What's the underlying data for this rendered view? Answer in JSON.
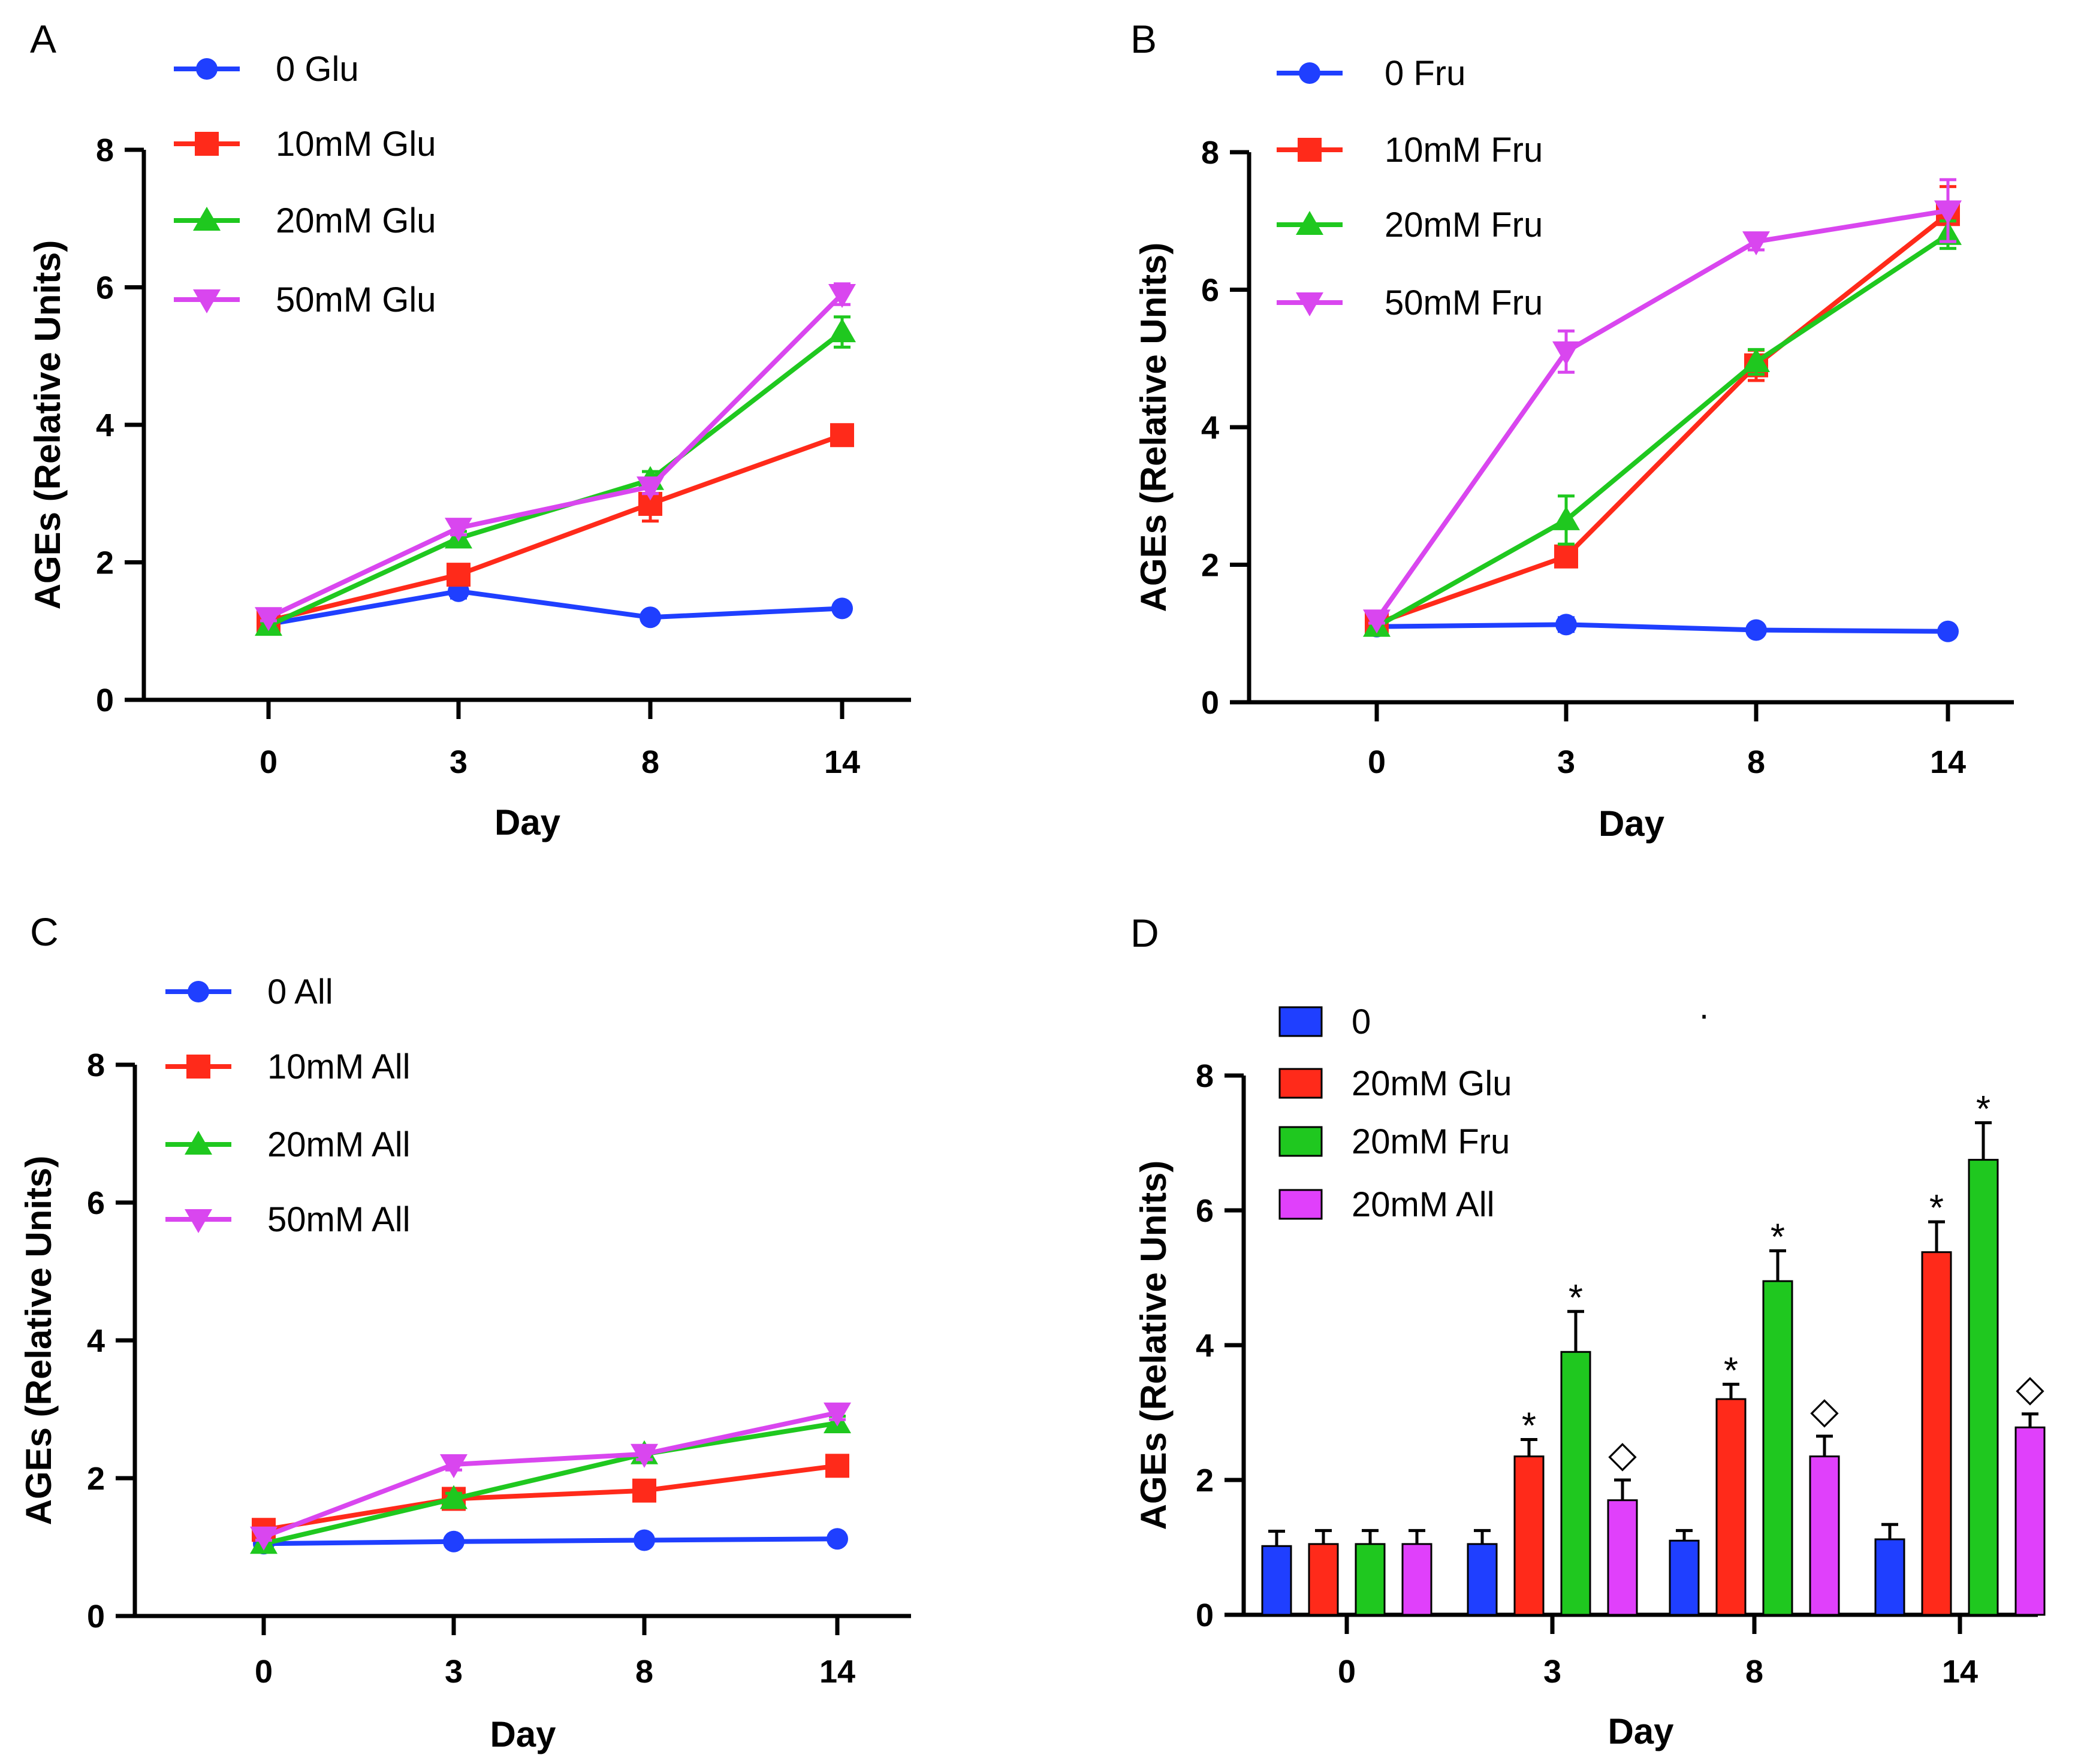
{
  "chart_data": [
    {
      "panel": "A",
      "type": "line",
      "x": [
        "0",
        "3",
        "8",
        "14"
      ],
      "xlabel": "Day",
      "ylabel": "AGEs (Relative Units)",
      "ylim": [
        0,
        8
      ],
      "yticks": [
        "0",
        "2",
        "4",
        "6",
        "8"
      ],
      "legend_position": "top-left",
      "series": [
        {
          "name": "0 Glu",
          "color": "#1f3fff",
          "marker": "circle",
          "values": [
            1.1,
            1.58,
            1.2,
            1.33
          ],
          "errors": [
            0.05,
            0.1,
            0.05,
            0.08
          ]
        },
        {
          "name": "10mM Glu",
          "color": "#ff2a1a",
          "marker": "square",
          "values": [
            1.15,
            1.82,
            2.85,
            3.85
          ],
          "errors": [
            0.05,
            0.1,
            0.25,
            0.15
          ]
        },
        {
          "name": "20mM Glu",
          "color": "#1fc81f",
          "marker": "triangle-up",
          "values": [
            1.08,
            2.35,
            3.2,
            5.35
          ],
          "errors": [
            0.05,
            0.1,
            0.12,
            0.22
          ]
        },
        {
          "name": "50mM Glu",
          "color": "#d946ef",
          "marker": "triangle-down",
          "values": [
            1.2,
            2.5,
            3.1,
            5.9
          ],
          "errors": [
            0.05,
            0.1,
            0.1,
            0.15
          ]
        }
      ]
    },
    {
      "panel": "B",
      "type": "line",
      "x": [
        "0",
        "3",
        "8",
        "14"
      ],
      "xlabel": "Day",
      "ylabel": "AGEs (Relative Units)",
      "ylim": [
        0,
        8
      ],
      "yticks": [
        "0",
        "2",
        "4",
        "6",
        "8"
      ],
      "legend_position": "top-left",
      "series": [
        {
          "name": "0 Fru",
          "color": "#1f3fff",
          "marker": "circle",
          "values": [
            1.1,
            1.13,
            1.05,
            1.03
          ],
          "errors": [
            0.05,
            0.1,
            0.05,
            0.08
          ]
        },
        {
          "name": "10mM Fru",
          "color": "#ff2a1a",
          "marker": "square",
          "values": [
            1.15,
            2.12,
            4.9,
            7.1
          ],
          "errors": [
            0.05,
            0.12,
            0.22,
            0.4
          ]
        },
        {
          "name": "20mM Fru",
          "color": "#1fc81f",
          "marker": "triangle-up",
          "values": [
            1.1,
            2.65,
            4.95,
            6.8
          ],
          "errors": [
            0.05,
            0.35,
            0.18,
            0.2
          ]
        },
        {
          "name": "50mM Fru",
          "color": "#d946ef",
          "marker": "triangle-down",
          "values": [
            1.2,
            5.1,
            6.7,
            7.15
          ],
          "errors": [
            0.05,
            0.3,
            0.12,
            0.45
          ]
        }
      ]
    },
    {
      "panel": "C",
      "type": "line",
      "x": [
        "0",
        "3",
        "8",
        "14"
      ],
      "xlabel": "Day",
      "ylabel": "AGEs (Relative Units)",
      "ylim": [
        0,
        8
      ],
      "yticks": [
        "0",
        "2",
        "4",
        "6",
        "8"
      ],
      "legend_position": "top-left",
      "series": [
        {
          "name": "0 All",
          "color": "#1f3fff",
          "marker": "circle",
          "values": [
            1.05,
            1.08,
            1.1,
            1.12
          ],
          "errors": [
            0.04,
            0.05,
            0.05,
            0.08
          ]
        },
        {
          "name": "10mM All",
          "color": "#ff2a1a",
          "marker": "square",
          "values": [
            1.25,
            1.7,
            1.82,
            2.18
          ],
          "errors": [
            0.05,
            0.08,
            0.08,
            0.1
          ]
        },
        {
          "name": "20mM All",
          "color": "#1fc81f",
          "marker": "triangle-up",
          "values": [
            1.05,
            1.7,
            2.35,
            2.8
          ],
          "errors": [
            0.05,
            0.08,
            0.08,
            0.1
          ]
        },
        {
          "name": "50mM All",
          "color": "#d946ef",
          "marker": "triangle-down",
          "values": [
            1.15,
            2.2,
            2.35,
            2.95
          ],
          "errors": [
            0.05,
            0.08,
            0.08,
            0.1
          ]
        }
      ]
    },
    {
      "panel": "D",
      "type": "bar",
      "categories": [
        "0",
        "3",
        "8",
        "14"
      ],
      "xlabel": "Day",
      "ylabel": "AGEs (Relative Units)",
      "ylim": [
        0,
        8
      ],
      "yticks": [
        "0",
        "2",
        "4",
        "6",
        "8"
      ],
      "legend_position": "top-left",
      "stray_mark": ".",
      "series": [
        {
          "name": "0",
          "color": "#1f3fff",
          "values": [
            1.02,
            1.05,
            1.1,
            1.12
          ],
          "errors": [
            0.22,
            0.2,
            0.15,
            0.22
          ],
          "marks": [
            "",
            "",
            "",
            ""
          ]
        },
        {
          "name": "20mM Glu",
          "color": "#ff2a1a",
          "values": [
            1.05,
            2.35,
            3.2,
            5.38
          ],
          "errors": [
            0.2,
            0.25,
            0.22,
            0.45
          ],
          "marks": [
            "",
            "*",
            "*",
            "*"
          ]
        },
        {
          "name": "20mM Fru",
          "color": "#1fc81f",
          "values": [
            1.05,
            3.9,
            4.95,
            6.75
          ],
          "errors": [
            0.2,
            0.6,
            0.45,
            0.55
          ],
          "marks": [
            "",
            "*",
            "*",
            "*"
          ]
        },
        {
          "name": "20mM All",
          "color": "#e040fb",
          "values": [
            1.05,
            1.7,
            2.35,
            2.78
          ],
          "errors": [
            0.2,
            0.3,
            0.3,
            0.2
          ],
          "marks": [
            "",
            "◇",
            "◇",
            "◇"
          ]
        }
      ]
    }
  ]
}
